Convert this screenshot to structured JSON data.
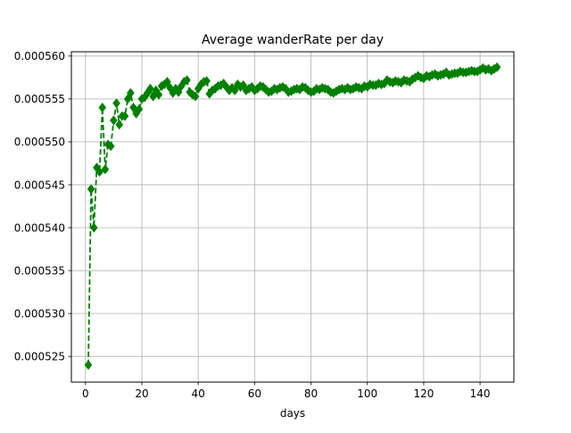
{
  "chart_data": {
    "type": "line",
    "title": "Average wanderRate per day",
    "xlabel": "days",
    "ylabel": "",
    "xlim": [
      -5,
      152
    ],
    "ylim": [
      0.000522,
      0.0005605
    ],
    "xticks": [
      0,
      20,
      40,
      60,
      80,
      100,
      120,
      140
    ],
    "xtick_labels": [
      "0",
      "20",
      "40",
      "60",
      "80",
      "100",
      "120",
      "140"
    ],
    "yticks": [
      0.000525,
      0.00053,
      0.000535,
      0.00054,
      0.000545,
      0.00055,
      0.000555,
      0.00056
    ],
    "ytick_labels": [
      "0.000525",
      "0.000530",
      "0.000535",
      "0.000540",
      "0.000545",
      "0.000550",
      "0.000555",
      "0.000560"
    ],
    "grid": true,
    "color": "#008000",
    "line_style": "dashed",
    "marker": "diamond",
    "series": [
      {
        "x": [
          1,
          2,
          3,
          4,
          5,
          6,
          7,
          8,
          9,
          10,
          11,
          12,
          13,
          14,
          15,
          16,
          17,
          18,
          19,
          20,
          21,
          22,
          23,
          24,
          25,
          26,
          27,
          28,
          29,
          30,
          31,
          32,
          33,
          34,
          35,
          36,
          37,
          38,
          39,
          40,
          41,
          42,
          43,
          44,
          45,
          46,
          47,
          48,
          49,
          50,
          51,
          52,
          53,
          54,
          55,
          56,
          57,
          58,
          59,
          60,
          61,
          62,
          63,
          64,
          65,
          66,
          67,
          68,
          69,
          70,
          71,
          72,
          73,
          74,
          75,
          76,
          77,
          78,
          79,
          80,
          81,
          82,
          83,
          84,
          85,
          86,
          87,
          88,
          89,
          90,
          91,
          92,
          93,
          94,
          95,
          96,
          97,
          98,
          99,
          100,
          101,
          102,
          103,
          104,
          105,
          106,
          107,
          108,
          109,
          110,
          111,
          112,
          113,
          114,
          115,
          116,
          117,
          118,
          119,
          120,
          121,
          122,
          123,
          124,
          125,
          126,
          127,
          128,
          129,
          130,
          131,
          132,
          133,
          134,
          135,
          136,
          137,
          138,
          139,
          140,
          141,
          142,
          143,
          144,
          145,
          146
        ],
        "y": [
          0.000524,
          0.0005445,
          0.00054,
          0.000547,
          0.0005465,
          0.000554,
          0.0005468,
          0.0005497,
          0.0005495,
          0.0005525,
          0.0005545,
          0.000552,
          0.000553,
          0.000553,
          0.000555,
          0.0005557,
          0.000554,
          0.0005533,
          0.0005538,
          0.000555,
          0.0005552,
          0.0005557,
          0.0005562,
          0.0005553,
          0.000556,
          0.0005555,
          0.0005565,
          0.0005567,
          0.000557,
          0.0005563,
          0.0005557,
          0.0005562,
          0.0005558,
          0.0005565,
          0.000557,
          0.0005572,
          0.0005558,
          0.0005555,
          0.0005553,
          0.0005562,
          0.0005567,
          0.000557,
          0.0005571,
          0.0005556,
          0.000556,
          0.0005562,
          0.0005565,
          0.0005566,
          0.0005568,
          0.0005564,
          0.000556,
          0.0005563,
          0.000556,
          0.0005567,
          0.0005564,
          0.0005566,
          0.000556,
          0.0005562,
          0.0005564,
          0.000556,
          0.0005562,
          0.0005565,
          0.0005564,
          0.0005561,
          0.0005558,
          0.0005559,
          0.0005562,
          0.0005561,
          0.0005563,
          0.0005564,
          0.0005562,
          0.0005558,
          0.0005559,
          0.0005561,
          0.0005562,
          0.0005561,
          0.0005564,
          0.0005563,
          0.000556,
          0.0005558,
          0.0005559,
          0.0005562,
          0.0005561,
          0.0005563,
          0.0005562,
          0.0005561,
          0.0005558,
          0.0005557,
          0.0005559,
          0.0005561,
          0.0005562,
          0.0005561,
          0.0005563,
          0.0005561,
          0.0005562,
          0.0005564,
          0.0005563,
          0.0005562,
          0.0005565,
          0.0005564,
          0.0005567,
          0.0005566,
          0.0005566,
          0.0005568,
          0.0005567,
          0.0005568,
          0.0005572,
          0.000557,
          0.0005569,
          0.0005571,
          0.000557,
          0.0005569,
          0.0005572,
          0.0005571,
          0.000557,
          0.0005573,
          0.0005575,
          0.0005577,
          0.0005575,
          0.0005574,
          0.0005577,
          0.0005576,
          0.0005578,
          0.0005579,
          0.0005577,
          0.0005578,
          0.0005579,
          0.0005581,
          0.0005578,
          0.0005579,
          0.000558,
          0.000558,
          0.0005582,
          0.0005581,
          0.0005581,
          0.0005582,
          0.0005583,
          0.0005582,
          0.0005582,
          0.0005584,
          0.0005586,
          0.0005584,
          0.0005585,
          0.0005583,
          0.0005585,
          0.0005587
        ]
      }
    ]
  }
}
